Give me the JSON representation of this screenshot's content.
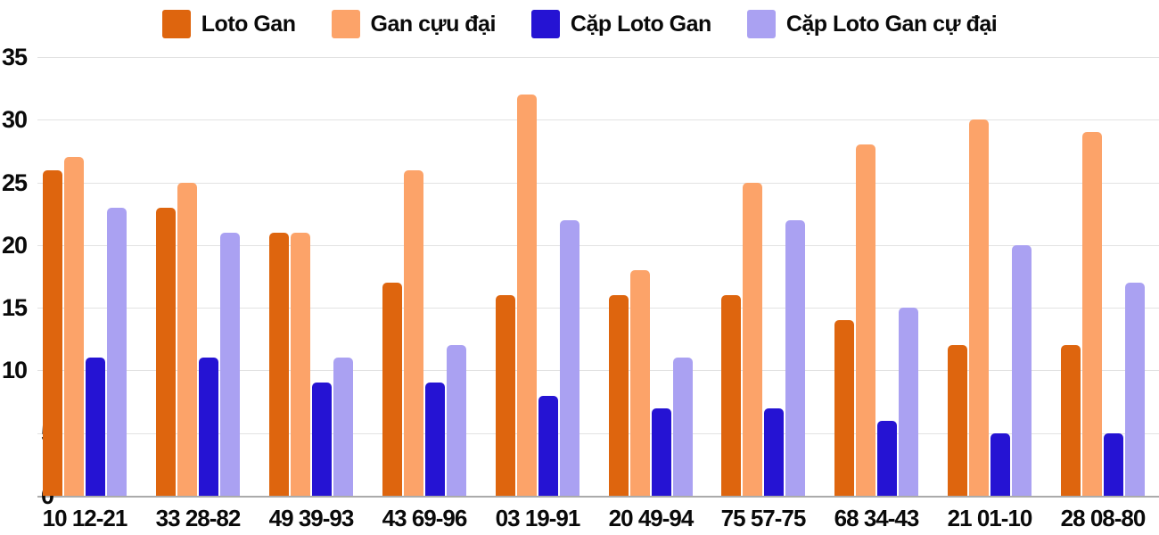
{
  "chart_data": {
    "type": "bar",
    "title": "",
    "categories": [
      "10 12-21",
      "33 28-82",
      "49 39-93",
      "43 69-96",
      "03 19-91",
      "20 49-94",
      "75 57-75",
      "68 34-43",
      "21 01-10",
      "28 08-80"
    ],
    "series": [
      {
        "name": "Loto Gan",
        "color": "#DE650E",
        "values": [
          26,
          23,
          21,
          17,
          16,
          16,
          16,
          14,
          12,
          12
        ]
      },
      {
        "name": "Gan cựu đại",
        "color": "#FCA369",
        "values": [
          27,
          25,
          21,
          26,
          32,
          18,
          25,
          28,
          30,
          29
        ]
      },
      {
        "name": "Cặp Loto Gan",
        "color": "#2513D3",
        "values": [
          11,
          11,
          9,
          9,
          8,
          7,
          7,
          6,
          5,
          5
        ]
      },
      {
        "name": "Cặp Loto Gan cự đại",
        "color": "#AAA1F2",
        "values": [
          23,
          21,
          11,
          12,
          22,
          11,
          22,
          15,
          20,
          17
        ]
      }
    ],
    "xlabel": "",
    "ylabel": "",
    "ylim": [
      0,
      35
    ],
    "yticks": [
      0,
      5,
      10,
      15,
      20,
      25,
      30,
      35
    ],
    "grid": true,
    "legend_position": "top",
    "colors": {
      "background": "#ffffff",
      "grid_line": "#e2e2e2",
      "axis_line": "#ababab",
      "label_text": "#0a0a0a"
    }
  }
}
